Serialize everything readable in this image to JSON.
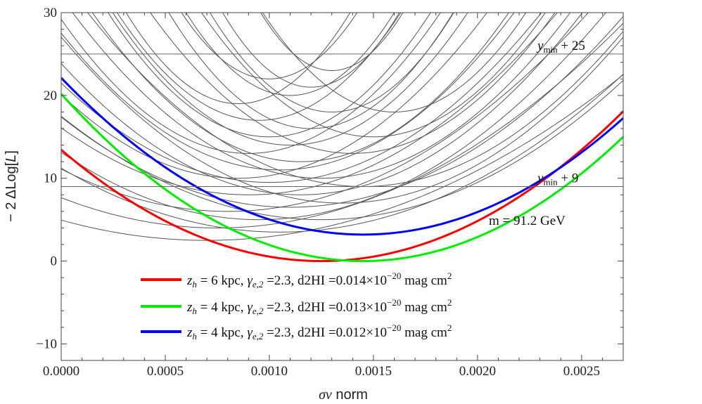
{
  "chart_data": {
    "type": "line",
    "title": "",
    "xlabel_sym": "σv",
    "xlabel_rest": " norm",
    "ylabel_pre": "− 2 ΔLog[",
    "ylabel_sym": "L",
    "ylabel_post": "]",
    "xlim": [
      0.0,
      0.0027
    ],
    "ylim": [
      -12,
      30
    ],
    "x_ticks": [
      0.0,
      0.0005,
      0.001,
      0.0015,
      0.002,
      0.0025
    ],
    "x_tick_labels": [
      "0.0000",
      "0.0005",
      "0.0010",
      "0.0015",
      "0.0020",
      "0.0025"
    ],
    "y_ticks": [
      -10,
      0,
      10,
      20,
      30
    ],
    "y_tick_labels": [
      "−10",
      "0",
      "10",
      "20",
      "30"
    ],
    "reference_lines": [
      {
        "y": 25,
        "label_main": "y",
        "label_sub": "min",
        "label_rest": " + 25"
      },
      {
        "y": 9,
        "label_main": "y",
        "label_sub": "min",
        "label_rest": " + 9"
      }
    ],
    "annotation": "m = 91.2 GeV",
    "background_curves_note": "grey parabolas: [x_min, y_min, curvature per 0.001^2]",
    "background_curves": [
      [
        0.00095,
        5.0,
        9.0
      ],
      [
        0.001,
        9.5,
        12.0
      ],
      [
        0.0011,
        14.0,
        22.0
      ],
      [
        0.0009,
        8.0,
        10.0
      ],
      [
        0.00105,
        11.0,
        15.0
      ],
      [
        0.0012,
        16.0,
        30.0
      ],
      [
        0.0008,
        6.0,
        8.0
      ],
      [
        0.00115,
        12.0,
        18.0
      ],
      [
        0.001,
        15.0,
        25.0
      ],
      [
        0.0013,
        18.0,
        35.0
      ],
      [
        0.00085,
        10.0,
        14.0
      ],
      [
        0.00125,
        10.0,
        14.0
      ],
      [
        0.0014,
        13.0,
        18.0
      ],
      [
        0.00095,
        17.0,
        28.0
      ],
      [
        0.0011,
        20.0,
        40.0
      ],
      [
        0.00075,
        4.0,
        6.5
      ],
      [
        0.00135,
        7.0,
        11.0
      ],
      [
        0.00105,
        3.5,
        7.0
      ],
      [
        0.0015,
        15.0,
        22.0
      ],
      [
        0.0012,
        21.0,
        50.0
      ],
      [
        0.0009,
        13.0,
        20.0
      ],
      [
        0.001,
        22.0,
        45.0
      ],
      [
        0.00115,
        8.0,
        12.0
      ],
      [
        0.00145,
        9.0,
        12.0
      ],
      [
        0.0007,
        2.5,
        5.0
      ],
      [
        0.0013,
        23.0,
        60.0
      ],
      [
        0.0016,
        18.0,
        30.0
      ],
      [
        0.0011,
        6.5,
        9.0
      ],
      [
        0.00125,
        5.0,
        8.0
      ],
      [
        0.00085,
        19.0,
        38.0
      ]
    ],
    "series": [
      {
        "name_z": "z",
        "name_zsub": "h",
        "name_eq": " = 6 kpc, ",
        "name_g": "γ",
        "name_gsub": "e,2",
        "name_mid": " =2.3, d2HI =0.014×10",
        "name_sup": "−20",
        "name_end": " mag cm",
        "name_end_sup": "2",
        "color": "#ff0000",
        "x_min": 0.00125,
        "y_min": 0.0,
        "curvature": 8.6
      },
      {
        "name_z": "z",
        "name_zsub": "h",
        "name_eq": " = 4 kpc, ",
        "name_g": "γ",
        "name_gsub": "e,2",
        "name_mid": " =2.3, d2HI =0.013×10",
        "name_sup": "−20",
        "name_end": " mag cm",
        "name_end_sup": "2",
        "color": "#00ee00",
        "x_min": 0.00145,
        "y_min": 0.0,
        "curvature": 9.6
      },
      {
        "name_z": "z",
        "name_zsub": "h",
        "name_eq": " = 4 kpc, ",
        "name_g": "γ",
        "name_gsub": "e,2",
        "name_mid": " =2.3, d2HI =0.012×10",
        "name_sup": "−20",
        "name_end": " mag cm",
        "name_end_sup": "2",
        "color": "#0000ff",
        "x_min": 0.00145,
        "y_min": 3.2,
        "curvature": 9.0
      }
    ]
  }
}
